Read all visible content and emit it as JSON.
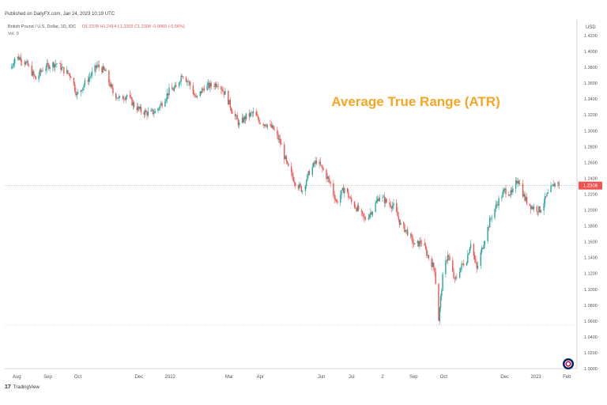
{
  "header": {
    "published": "Published on DailyFX.com, Jan 24, 2023 10:19 UTC",
    "symbol": "British Pound / U.S. Dollar, 1D, IDC",
    "ohlc": "O1.2378 H1.2414 L1.2302 C1.2308 -0.0069 (-0.56%)",
    "volume": "Vol. 0"
  },
  "footer": {
    "brand": "TradingView"
  },
  "colors": {
    "up": "#26a69a",
    "down": "#ef5350",
    "title": "#f5a623",
    "current_price_label": "#ef5350"
  },
  "chart_data": {
    "type": "candlestick",
    "title": "Average True Range (ATR)",
    "currency": "USD",
    "ylim": [
      1.0,
      1.42
    ],
    "y_ticks": [
      "1.4200",
      "1.4000",
      "1.3800",
      "1.3600",
      "1.3400",
      "1.3200",
      "1.3000",
      "1.2800",
      "1.2600",
      "1.2400",
      "1.2200",
      "1.2000",
      "1.1800",
      "1.1600",
      "1.1400",
      "1.1200",
      "1.1000",
      "1.0800",
      "1.0600",
      "1.0400",
      "1.0200",
      "1.0000"
    ],
    "y_tick_values": [
      1.42,
      1.4,
      1.38,
      1.36,
      1.34,
      1.32,
      1.3,
      1.28,
      1.26,
      1.24,
      1.22,
      1.2,
      1.18,
      1.16,
      1.14,
      1.12,
      1.1,
      1.08,
      1.06,
      1.04,
      1.02,
      1.0
    ],
    "x_ticks": [
      "Aug",
      "Sep",
      "Oct",
      "Dec",
      "2022",
      "Mar",
      "Apr",
      "Jun",
      "Jul",
      "2",
      "Sep",
      "Oct",
      "Dec",
      "2023",
      "Feb"
    ],
    "x_tick_dates": [
      "2021-08-01",
      "2021-09-01",
      "2021-10-01",
      "2021-12-01",
      "2022-01-01",
      "2022-03-01",
      "2022-04-01",
      "2022-06-01",
      "2022-07-01",
      "2022-08-01",
      "2022-09-01",
      "2022-10-01",
      "2022-12-01",
      "2023-01-01",
      "2023-02-01"
    ],
    "current_price": 1.2308,
    "current_price_label": "1.2308",
    "reference_level": 1.055,
    "close_path": [
      [
        "2021-07-26",
        1.378
      ],
      [
        "2021-07-30",
        1.392
      ],
      [
        "2021-08-05",
        1.392
      ],
      [
        "2021-08-12",
        1.382
      ],
      [
        "2021-08-20",
        1.365
      ],
      [
        "2021-08-27",
        1.378
      ],
      [
        "2021-09-03",
        1.383
      ],
      [
        "2021-09-10",
        1.385
      ],
      [
        "2021-09-17",
        1.376
      ],
      [
        "2021-09-24",
        1.37
      ],
      [
        "2021-09-30",
        1.345
      ],
      [
        "2021-10-08",
        1.36
      ],
      [
        "2021-10-15",
        1.372
      ],
      [
        "2021-10-20",
        1.382
      ],
      [
        "2021-10-28",
        1.375
      ],
      [
        "2021-11-05",
        1.348
      ],
      [
        "2021-11-12",
        1.34
      ],
      [
        "2021-11-19",
        1.345
      ],
      [
        "2021-11-26",
        1.332
      ],
      [
        "2021-12-03",
        1.325
      ],
      [
        "2021-12-10",
        1.322
      ],
      [
        "2021-12-17",
        1.324
      ],
      [
        "2021-12-24",
        1.335
      ],
      [
        "2021-12-31",
        1.35
      ],
      [
        "2022-01-07",
        1.354
      ],
      [
        "2022-01-13",
        1.372
      ],
      [
        "2022-01-20",
        1.36
      ],
      [
        "2022-01-27",
        1.34
      ],
      [
        "2022-02-04",
        1.355
      ],
      [
        "2022-02-11",
        1.357
      ],
      [
        "2022-02-18",
        1.36
      ],
      [
        "2022-02-25",
        1.347
      ],
      [
        "2022-03-04",
        1.325
      ],
      [
        "2022-03-11",
        1.308
      ],
      [
        "2022-03-18",
        1.318
      ],
      [
        "2022-03-25",
        1.322
      ],
      [
        "2022-04-01",
        1.311
      ],
      [
        "2022-04-08",
        1.308
      ],
      [
        "2022-04-14",
        1.302
      ],
      [
        "2022-04-21",
        1.285
      ],
      [
        "2022-04-28",
        1.255
      ],
      [
        "2022-05-06",
        1.235
      ],
      [
        "2022-05-13",
        1.225
      ],
      [
        "2022-05-20",
        1.248
      ],
      [
        "2022-05-27",
        1.262
      ],
      [
        "2022-06-03",
        1.25
      ],
      [
        "2022-06-10",
        1.233
      ],
      [
        "2022-06-16",
        1.21
      ],
      [
        "2022-06-24",
        1.228
      ],
      [
        "2022-07-01",
        1.21
      ],
      [
        "2022-07-08",
        1.2
      ],
      [
        "2022-07-14",
        1.188
      ],
      [
        "2022-07-22",
        1.2
      ],
      [
        "2022-07-29",
        1.218
      ],
      [
        "2022-08-05",
        1.21
      ],
      [
        "2022-08-12",
        1.205
      ],
      [
        "2022-08-19",
        1.182
      ],
      [
        "2022-08-26",
        1.172
      ],
      [
        "2022-09-02",
        1.155
      ],
      [
        "2022-09-09",
        1.16
      ],
      [
        "2022-09-16",
        1.14
      ],
      [
        "2022-09-22",
        1.125
      ],
      [
        "2022-09-26",
        1.062
      ],
      [
        "2022-09-30",
        1.115
      ],
      [
        "2022-10-05",
        1.145
      ],
      [
        "2022-10-12",
        1.11
      ],
      [
        "2022-10-18",
        1.128
      ],
      [
        "2022-10-24",
        1.138
      ],
      [
        "2022-10-28",
        1.16
      ],
      [
        "2022-11-03",
        1.125
      ],
      [
        "2022-11-10",
        1.16
      ],
      [
        "2022-11-17",
        1.19
      ],
      [
        "2022-11-24",
        1.21
      ],
      [
        "2022-12-01",
        1.225
      ],
      [
        "2022-12-08",
        1.22
      ],
      [
        "2022-12-14",
        1.24
      ],
      [
        "2022-12-21",
        1.214
      ],
      [
        "2022-12-28",
        1.204
      ],
      [
        "2023-01-05",
        1.2
      ],
      [
        "2023-01-12",
        1.218
      ],
      [
        "2023-01-19",
        1.232
      ],
      [
        "2023-01-23",
        1.237
      ],
      [
        "2023-01-24",
        1.2308
      ]
    ]
  }
}
